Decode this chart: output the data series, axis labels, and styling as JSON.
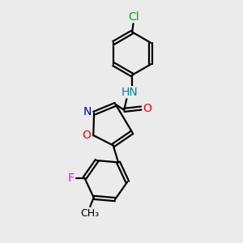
{
  "background_color": "#ebebeb",
  "bond_color": "#000000",
  "bond_width": 1.6,
  "atom_colors": {
    "C": "#000000",
    "N": "#0000cc",
    "O": "#ff0000",
    "Cl": "#00aa00",
    "F": "#ff00ff",
    "H": "#008888"
  },
  "font_size": 10
}
